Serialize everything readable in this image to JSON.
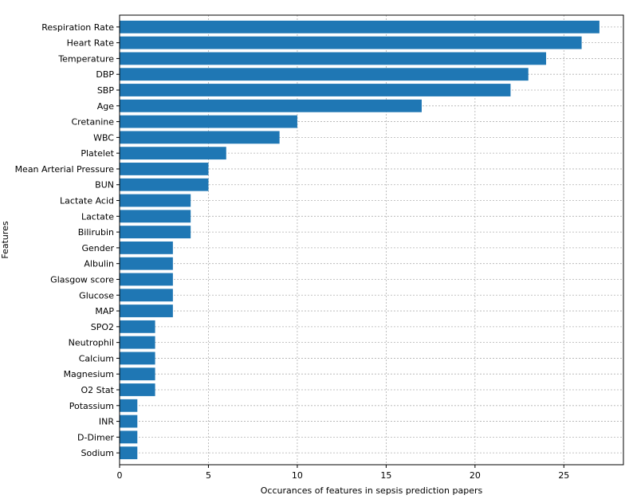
{
  "chart_data": {
    "type": "bar",
    "orientation": "horizontal",
    "title": "",
    "xlabel": "Occurances of features in sepsis prediction papers",
    "ylabel": "Features",
    "xlim": [
      0,
      28.35
    ],
    "xticks": [
      0,
      5,
      10,
      15,
      20,
      25
    ],
    "grid": true,
    "bar_color": "#1f77b4",
    "grid_color": "#b0b0b0",
    "categories": [
      "Respiration Rate",
      "Heart Rate",
      "Temperature",
      "DBP",
      "SBP",
      "Age",
      "Cretanine",
      "WBC",
      "Platelet",
      "Mean Arterial Pressure",
      "BUN",
      "Lactate Acid",
      "Lactate",
      "Bilirubin",
      "Gender",
      "Albulin",
      "Glasgow score",
      "Glucose",
      "MAP",
      "SPO2",
      "Neutrophil",
      "Calcium",
      "Magnesium",
      "O2 Stat",
      "Potassium",
      "INR",
      "D-Dimer",
      "Sodium"
    ],
    "values": [
      27,
      26,
      24,
      23,
      22,
      17,
      10,
      9,
      6,
      5,
      5,
      4,
      4,
      4,
      3,
      3,
      3,
      3,
      3,
      2,
      2,
      2,
      2,
      2,
      1,
      1,
      1,
      1
    ]
  }
}
